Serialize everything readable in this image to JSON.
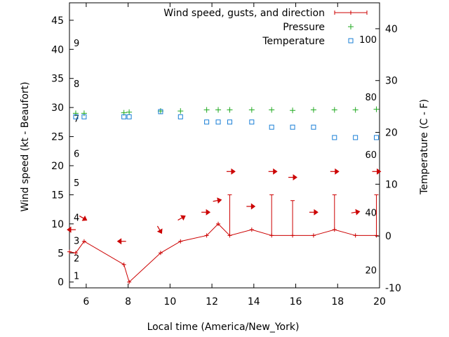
{
  "chart_data": {
    "type": "line",
    "xlabel": "Local time (America/New_York)",
    "ylabel": "Wind speed (kt - Beaufort)",
    "y2label": "Temperature (C - F)",
    "xlim": [
      5.2,
      20.0
    ],
    "ylim": [
      -1,
      48
    ],
    "y2lim": [
      -10,
      45
    ],
    "x_ticks": [
      6,
      8,
      10,
      12,
      14,
      16,
      18,
      20
    ],
    "y_ticks": [
      0,
      5,
      10,
      15,
      20,
      25,
      30,
      35,
      40,
      45
    ],
    "y2_ticks": [
      -10,
      0,
      10,
      20,
      30,
      40
    ],
    "beaufort_labels": [
      {
        "label": "1",
        "y": 1
      },
      {
        "label": "2",
        "y": 4
      },
      {
        "label": "3",
        "y": 7
      },
      {
        "label": "4",
        "y": 11
      },
      {
        "label": "5",
        "y": 17
      },
      {
        "label": "6",
        "y": 22
      },
      {
        "label": "7",
        "y": 28
      },
      {
        "label": "8",
        "y": 34
      },
      {
        "label": "9",
        "y": 41
      }
    ],
    "fahrenheit_labels": [
      {
        "label": "20",
        "value_c": -6.7
      },
      {
        "label": "40",
        "value_c": 4.4
      },
      {
        "label": "60",
        "value_c": 15.6
      },
      {
        "label": "80",
        "value_c": 26.7
      },
      {
        "label": "100",
        "value_c": 37.8
      }
    ],
    "legend": {
      "placement": "top-right",
      "entries": [
        {
          "label": "Wind speed, gusts, and direction",
          "color": "#cc0000",
          "marker": "line-plus"
        },
        {
          "label": "Pressure",
          "color": "#22aa22",
          "marker": "plus"
        },
        {
          "label": "Temperature",
          "color": "#1a7fd6",
          "marker": "square"
        }
      ]
    },
    "series": [
      {
        "name": "Wind speed, gusts, and direction",
        "color": "#cc0000",
        "points": [
          {
            "x": 5.2,
            "y": 5.2,
            "gust": null
          },
          {
            "x": 5.5,
            "y": 5.0,
            "gust": null
          },
          {
            "x": 5.9,
            "y": 7.0,
            "gust": null
          },
          {
            "x": 7.8,
            "y": 3.0,
            "gust": null
          },
          {
            "x": 8.05,
            "y": 0.0,
            "gust": null
          },
          {
            "x": 9.55,
            "y": 5.0,
            "gust": null
          },
          {
            "x": 10.5,
            "y": 7.0,
            "gust": null
          },
          {
            "x": 11.75,
            "y": 8.0,
            "gust": null
          },
          {
            "x": 12.3,
            "y": 10.0,
            "gust": null
          },
          {
            "x": 12.85,
            "y": 8.0,
            "gust": 15.0
          },
          {
            "x": 13.9,
            "y": 9.0,
            "gust": null
          },
          {
            "x": 14.85,
            "y": 8.0,
            "gust": 15.0
          },
          {
            "x": 15.85,
            "y": 8.0,
            "gust": 14.0
          },
          {
            "x": 16.85,
            "y": 8.0,
            "gust": null
          },
          {
            "x": 17.85,
            "y": 9.0,
            "gust": 15.0
          },
          {
            "x": 18.85,
            "y": 8.0,
            "gust": null
          },
          {
            "x": 19.85,
            "y": 8.0,
            "gust": 15.0
          }
        ]
      },
      {
        "name": "Pressure",
        "color": "#22aa22",
        "points": [
          {
            "x": 5.5,
            "y": 29.0
          },
          {
            "x": 5.9,
            "y": 29.0
          },
          {
            "x": 7.8,
            "y": 29.1
          },
          {
            "x": 8.05,
            "y": 29.2
          },
          {
            "x": 9.55,
            "y": 29.4
          },
          {
            "x": 10.5,
            "y": 29.4
          },
          {
            "x": 11.75,
            "y": 29.6
          },
          {
            "x": 12.3,
            "y": 29.6
          },
          {
            "x": 12.85,
            "y": 29.6
          },
          {
            "x": 13.9,
            "y": 29.6
          },
          {
            "x": 14.85,
            "y": 29.6
          },
          {
            "x": 15.85,
            "y": 29.5
          },
          {
            "x": 16.85,
            "y": 29.6
          },
          {
            "x": 17.85,
            "y": 29.6
          },
          {
            "x": 18.85,
            "y": 29.6
          },
          {
            "x": 19.85,
            "y": 29.7
          }
        ]
      },
      {
        "name": "Temperature",
        "color": "#1a7fd6",
        "axis": "y2",
        "points": [
          {
            "x": 5.5,
            "y": 23.0
          },
          {
            "x": 5.9,
            "y": 23.0
          },
          {
            "x": 7.8,
            "y": 23.0
          },
          {
            "x": 8.05,
            "y": 23.0
          },
          {
            "x": 9.55,
            "y": 24.0
          },
          {
            "x": 10.5,
            "y": 23.0
          },
          {
            "x": 11.75,
            "y": 22.0
          },
          {
            "x": 12.3,
            "y": 22.0
          },
          {
            "x": 12.85,
            "y": 22.0
          },
          {
            "x": 13.9,
            "y": 22.0
          },
          {
            "x": 14.85,
            "y": 21.0
          },
          {
            "x": 15.85,
            "y": 21.0
          },
          {
            "x": 16.85,
            "y": 21.0
          },
          {
            "x": 17.85,
            "y": 19.0
          },
          {
            "x": 18.85,
            "y": 19.0
          },
          {
            "x": 19.85,
            "y": 19.0
          }
        ]
      }
    ],
    "direction_arrows": [
      {
        "x": 5.3,
        "y": 9.0,
        "dir_deg": 90
      },
      {
        "x": 5.85,
        "y": 11.0,
        "dir_deg": 300
      },
      {
        "x": 7.7,
        "y": 7.0,
        "dir_deg": 90
      },
      {
        "x": 9.5,
        "y": 9.0,
        "dir_deg": 330
      },
      {
        "x": 10.55,
        "y": 11.0,
        "dir_deg": 240
      },
      {
        "x": 11.7,
        "y": 12.0,
        "dir_deg": 270
      },
      {
        "x": 12.25,
        "y": 14.0,
        "dir_deg": 260
      },
      {
        "x": 12.9,
        "y": 19.0,
        "dir_deg": 270
      },
      {
        "x": 13.85,
        "y": 13.0,
        "dir_deg": 270
      },
      {
        "x": 14.9,
        "y": 19.0,
        "dir_deg": 270
      },
      {
        "x": 15.85,
        "y": 18.0,
        "dir_deg": 270
      },
      {
        "x": 16.85,
        "y": 12.0,
        "dir_deg": 270
      },
      {
        "x": 17.85,
        "y": 19.0,
        "dir_deg": 270
      },
      {
        "x": 18.85,
        "y": 12.0,
        "dir_deg": 260
      },
      {
        "x": 19.85,
        "y": 19.0,
        "dir_deg": 270
      }
    ]
  }
}
